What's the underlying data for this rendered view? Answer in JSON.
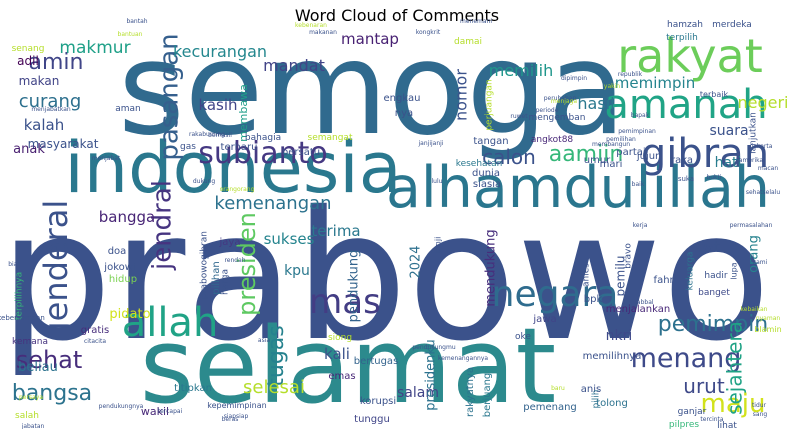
{
  "chart_data": {
    "type": "wordcloud",
    "title": "Word Cloud of Comments",
    "words": [
      {
        "text": "prabowo",
        "weight": 1.0,
        "color": "#3b528b"
      },
      {
        "text": "semoga",
        "weight": 0.93,
        "color": "#306a8e"
      },
      {
        "text": "selamat",
        "weight": 0.8,
        "color": "#2c8a8d"
      },
      {
        "text": "indonesia",
        "weight": 0.58,
        "color": "#2a788e"
      },
      {
        "text": "alhamdulillah",
        "weight": 0.47,
        "color": "#2a768e"
      },
      {
        "text": "rakyat",
        "weight": 0.4,
        "color": "#6ccd5a"
      },
      {
        "text": "amanah",
        "weight": 0.35,
        "color": "#20a486"
      },
      {
        "text": "gibran",
        "weight": 0.34,
        "color": "#3b528b"
      },
      {
        "text": "allah",
        "weight": 0.34,
        "color": "#20a386"
      },
      {
        "text": "negara",
        "weight": 0.31,
        "color": "#2f6c8e"
      },
      {
        "text": "mas",
        "weight": 0.28,
        "color": "#433d84"
      },
      {
        "text": "jenderal",
        "weight": 0.26,
        "color": "#3b528b"
      },
      {
        "text": "subianto",
        "weight": 0.24,
        "color": "#453882"
      },
      {
        "text": "menang",
        "weight": 0.23,
        "color": "#3e4a89"
      },
      {
        "text": "pasangan",
        "weight": 0.22,
        "color": "#355f8d"
      },
      {
        "text": "jendral",
        "weight": 0.22,
        "color": "#463480"
      },
      {
        "text": "maju",
        "weight": 0.22,
        "color": "#d2e21b"
      },
      {
        "text": "presiden",
        "weight": 0.2,
        "color": "#5ec962"
      },
      {
        "text": "sehat",
        "weight": 0.2,
        "color": "#472d7b"
      },
      {
        "text": "pemimpin",
        "weight": 0.19,
        "color": "#2d718e"
      },
      {
        "text": "tugas",
        "weight": 0.19,
        "color": "#26828e"
      },
      {
        "text": "aamiin",
        "weight": 0.18,
        "color": "#35b779"
      },
      {
        "text": "bangsa",
        "weight": 0.18,
        "color": "#2c738e"
      },
      {
        "text": "amin",
        "weight": 0.17,
        "color": "#404588"
      },
      {
        "text": "calon",
        "weight": 0.16,
        "color": "#3b528b"
      },
      {
        "text": "urut",
        "weight": 0.16,
        "color": "#3e4989"
      },
      {
        "text": "sejahtera",
        "weight": 0.15,
        "color": "#20a386"
      },
      {
        "text": "kemenangan",
        "weight": 0.14,
        "color": "#2c728e"
      },
      {
        "text": "curang",
        "weight": 0.14,
        "color": "#2d708e"
      },
      {
        "text": "selesai",
        "weight": 0.14,
        "color": "#b5de2b"
      },
      {
        "text": "makmur",
        "weight": 0.13,
        "color": "#1fa088"
      },
      {
        "text": "kecurangan",
        "weight": 0.13,
        "color": "#24878e"
      },
      {
        "text": "memilih",
        "weight": 0.13,
        "color": "#1f968b"
      },
      {
        "text": "mandat",
        "weight": 0.13,
        "color": "#414487"
      },
      {
        "text": "mantap",
        "weight": 0.12,
        "color": "#482173"
      },
      {
        "text": "nomor",
        "weight": 0.12,
        "color": "#3b528b"
      },
      {
        "text": "hasil",
        "weight": 0.12,
        "color": "#2a788e"
      },
      {
        "text": "memimpin",
        "weight": 0.11,
        "color": "#25848e"
      },
      {
        "text": "negeri",
        "weight": 0.11,
        "color": "#b5de2b"
      },
      {
        "text": "kasih",
        "weight": 0.11,
        "color": "#404588"
      },
      {
        "text": "kalah",
        "weight": 0.11,
        "color": "#3b528b"
      },
      {
        "text": "bangga",
        "weight": 0.11,
        "color": "#482576"
      },
      {
        "text": "sukses",
        "weight": 0.11,
        "color": "#25848e"
      },
      {
        "text": "suara",
        "weight": 0.11,
        "color": "#3b528b"
      },
      {
        "text": "hati",
        "weight": 0.11,
        "color": "#287d8e"
      },
      {
        "text": "terima",
        "weight": 0.11,
        "color": "#2a788e"
      },
      {
        "text": "pendukung",
        "weight": 0.1,
        "color": "#33638d"
      },
      {
        "text": "mendukung",
        "weight": 0.1,
        "color": "#472e7c"
      },
      {
        "text": "2024",
        "weight": 0.1,
        "color": "#2d708e"
      },
      {
        "text": "swt",
        "weight": 0.1,
        "color": "#3b528b"
      },
      {
        "text": "kali",
        "weight": 0.1,
        "color": "#3b528b"
      },
      {
        "text": "salam",
        "weight": 0.1,
        "color": "#414487"
      },
      {
        "text": "kpu",
        "weight": 0.09,
        "color": "#2a788e"
      },
      {
        "text": "anak",
        "weight": 0.09,
        "color": "#481f70"
      },
      {
        "text": "adil",
        "weight": 0.09,
        "color": "#440154"
      },
      {
        "text": "makan",
        "weight": 0.09,
        "color": "#414487"
      },
      {
        "text": "masyarakat",
        "weight": 0.09,
        "color": "#3b528b"
      },
      {
        "text": "membawa",
        "weight": 0.08,
        "color": "#1f9e89"
      },
      {
        "text": "orang",
        "weight": 0.08,
        "color": "#26828e"
      },
      {
        "text": "pemilu",
        "weight": 0.08,
        "color": "#3b528b"
      },
      {
        "text": "presidenku",
        "weight": 0.08,
        "color": "#2c728e"
      },
      {
        "text": "nkri",
        "weight": 0.08,
        "color": "#3e4989"
      },
      {
        "text": "beliau",
        "weight": 0.08,
        "color": "#2c728e"
      },
      {
        "text": "pidato",
        "weight": 0.08,
        "color": "#d2e21b"
      },
      {
        "text": "angkot88",
        "weight": 0.06,
        "color": "#482878"
      },
      {
        "text": "bertugas",
        "weight": 0.06,
        "color": "#33638d"
      },
      {
        "text": "emas",
        "weight": 0.06,
        "color": "#482878"
      },
      {
        "text": "korupsi",
        "weight": 0.06,
        "color": "#3b528b"
      },
      {
        "text": "tunggu",
        "weight": 0.06,
        "color": "#404588"
      },
      {
        "text": "wakil",
        "weight": 0.06,
        "color": "#482878"
      },
      {
        "text": "titipkan",
        "weight": 0.06,
        "color": "#2a788e"
      },
      {
        "text": "pilihan",
        "weight": 0.06,
        "color": "#31688e"
      },
      {
        "text": "jaya",
        "weight": 0.06,
        "color": "#453882"
      },
      {
        "text": "doa",
        "weight": 0.06,
        "color": "#3b528b"
      },
      {
        "text": "jokowi",
        "weight": 0.06,
        "color": "#3b528b"
      },
      {
        "text": "hidup",
        "weight": 0.06,
        "color": "#7ad151"
      },
      {
        "text": "gratis",
        "weight": 0.06,
        "color": "#472d7b"
      },
      {
        "text": "kemana",
        "weight": 0.06,
        "color": "#46337f"
      },
      {
        "text": "menjalankan",
        "weight": 0.06,
        "color": "#482878"
      },
      {
        "text": "jawa",
        "weight": 0.06,
        "color": "#404588"
      },
      {
        "text": "pemenang",
        "weight": 0.06,
        "color": "#33638d"
      },
      {
        "text": "anis",
        "weight": 0.06,
        "color": "#3b528b"
      },
      {
        "text": "pilih",
        "weight": 0.06,
        "color": "#2c728e"
      },
      {
        "text": "tolong",
        "weight": 0.06,
        "color": "#2c728e"
      },
      {
        "text": "berjuang",
        "weight": 0.06,
        "color": "#2a788e"
      },
      {
        "text": "rakyatnya",
        "weight": 0.06,
        "color": "#2c728e"
      },
      {
        "text": "banget",
        "weight": 0.05,
        "color": "#3e4a89"
      },
      {
        "text": "hadir",
        "weight": 0.05,
        "color": "#3b528b"
      },
      {
        "text": "keluarga",
        "weight": 0.05,
        "color": "#2c728e"
      },
      {
        "text": "fahri",
        "weight": 0.05,
        "color": "#3b528b"
      },
      {
        "text": "bpk",
        "weight": 0.05,
        "color": "#3b528b"
      },
      {
        "text": "ganjar",
        "weight": 0.05,
        "color": "#3b528b"
      },
      {
        "text": "pilpres",
        "weight": 0.05,
        "color": "#35b779"
      },
      {
        "text": "lihat",
        "weight": 0.05,
        "color": "#3b528b"
      },
      {
        "text": "jujur",
        "weight": 0.05,
        "color": "#3b528b"
      },
      {
        "text": "raka",
        "weight": 0.05,
        "color": "#3b528b"
      },
      {
        "text": "partai",
        "weight": 0.05,
        "color": "#3b528b"
      },
      {
        "text": "mari",
        "weight": 0.05,
        "color": "#3b528b"
      },
      {
        "text": "umur",
        "weight": 0.05,
        "color": "#3b528b"
      },
      {
        "text": "tangan",
        "weight": 0.05,
        "color": "#3b528b"
      },
      {
        "text": "dunia",
        "weight": 0.05,
        "color": "#3b528b"
      },
      {
        "text": "siasia",
        "weight": 0.05,
        "color": "#3b528b"
      },
      {
        "text": "kesehatan",
        "weight": 0.05,
        "color": "#2a788e"
      },
      {
        "text": "bersatu",
        "weight": 0.05,
        "color": "#3b528b"
      },
      {
        "text": "terharu",
        "weight": 0.05,
        "color": "#3b528b"
      },
      {
        "text": "bahagia",
        "weight": 0.05,
        "color": "#3b528b"
      },
      {
        "text": "gas",
        "weight": 0.05,
        "color": "#3b528b"
      },
      {
        "text": "mengemban",
        "weight": 0.05,
        "color": "#3b528b"
      },
      {
        "text": "engkau",
        "weight": 0.05,
        "color": "#3b528b"
      },
      {
        "text": "nya",
        "weight": 0.05,
        "color": "#3b528b"
      },
      {
        "text": "aman",
        "weight": 0.05,
        "color": "#3b528b"
      },
      {
        "text": "terpilih",
        "weight": 0.05,
        "color": "#2a788e"
      },
      {
        "text": "prabowogibran",
        "weight": 0.05,
        "color": "#3b528b"
      },
      {
        "text": "harga",
        "weight": 0.04,
        "color": "#3b528b"
      },
      {
        "text": "terpilihnya",
        "weight": 0.04,
        "color": "#35b779"
      },
      {
        "text": "kebersamaan",
        "weight": 0.04,
        "color": "#3b528b"
      },
      {
        "text": "anies",
        "weight": 0.04,
        "color": "#3b528b"
      },
      {
        "text": "bravo",
        "weight": 0.04,
        "color": "#3b528b"
      },
      {
        "text": "kepemimpinan",
        "weight": 0.04,
        "color": "#3b528b"
      },
      {
        "text": "semangat",
        "weight": 0.04,
        "color": "#b5de2b"
      },
      {
        "text": "damai",
        "weight": 0.04,
        "color": "#b5de2b"
      },
      {
        "text": "perjuangan",
        "weight": 0.04,
        "color": "#b5de2b"
      },
      {
        "text": "senang",
        "weight": 0.03,
        "color": "#b5de2b"
      },
      {
        "text": "salah",
        "weight": 0.04,
        "color": "#b5de2b"
      },
      {
        "text": "hamzah",
        "weight": 0.04,
        "color": "#3b528b"
      },
      {
        "text": "merdeka",
        "weight": 0.04,
        "color": "#3b528b"
      },
      {
        "text": "terbaik",
        "weight": 0.03,
        "color": "#3b528b"
      },
      {
        "text": "lanjutkan",
        "weight": 0.03,
        "color": "#3b528b"
      },
      {
        "text": "janji",
        "weight": 0.03,
        "color": "#3b528b"
      },
      {
        "text": "menemani",
        "weight": 0.03,
        "color": "#3b528b"
      },
      {
        "text": "dipimpin",
        "weight": 0.02,
        "color": "#3b528b"
      },
      {
        "text": "pemilihan",
        "weight": 0.02,
        "color": "#3b528b"
      },
      {
        "text": "memilihnya",
        "weight": 0.04,
        "color": "#3b528b"
      },
      {
        "text": "oke",
        "weight": 0.03,
        "color": "#3b528b"
      },
      {
        "text": "siong",
        "weight": 0.03,
        "color": "#b5de2b"
      },
      {
        "text": "suka",
        "weight": 0.02,
        "color": "#3b528b"
      },
      {
        "text": "lupa",
        "weight": 0.03,
        "color": "#3b528b"
      },
      {
        "text": "blamin",
        "weight": 0.02,
        "color": "#b5de2b"
      },
      {
        "text": "rabbal",
        "weight": 0.02,
        "color": "#3b528b"
      },
      {
        "text": "tercinta",
        "weight": 0.02,
        "color": "#3b528b"
      },
      {
        "text": "kebaikan",
        "weight": 0.02,
        "color": "#b5de2b"
      },
      {
        "text": "tidur",
        "weight": 0.02,
        "color": "#3b528b"
      },
      {
        "text": "sang",
        "weight": 0.02,
        "color": "#3b528b"
      },
      {
        "text": "nyaman",
        "weight": 0.02,
        "color": "#b5de2b"
      },
      {
        "text": "baik",
        "weight": 0.02,
        "color": "#3b528b"
      },
      {
        "text": "kami",
        "weight": 0.02,
        "color": "#3b528b"
      },
      {
        "text": "pendukungnya",
        "weight": 0.02,
        "color": "#3b528b"
      },
      {
        "text": "dukung",
        "weight": 0.02,
        "color": "#3b528b"
      },
      {
        "text": "perubahan",
        "weight": 0.02,
        "color": "#3b528b"
      },
      {
        "text": "republik",
        "weight": 0.02,
        "color": "#3b528b"
      },
      {
        "text": "rendah",
        "weight": 0.02,
        "color": "#3b528b"
      },
      {
        "text": "yakin",
        "weight": 0.02,
        "color": "#b5de2b"
      },
      {
        "text": "asia",
        "weight": 0.02,
        "color": "#3b528b"
      },
      {
        "text": "periode",
        "weight": 0.02,
        "color": "#3b528b"
      },
      {
        "text": "menjabat",
        "weight": 0.02,
        "color": "#3b528b"
      },
      {
        "text": "orangorang",
        "weight": 0.02,
        "color": "#b5de2b"
      },
      {
        "text": "kemenangannya",
        "weight": 0.02,
        "color": "#3b528b"
      },
      {
        "text": "siapsiap",
        "weight": 0.02,
        "color": "#3b528b"
      },
      {
        "text": "jabatan",
        "weight": 0.02,
        "color": "#3b528b"
      },
      {
        "text": "berhasil",
        "weight": 0.02,
        "color": "#3b528b"
      },
      {
        "text": "bukti",
        "weight": 0.02,
        "color": "#3b528b"
      },
      {
        "text": "lulu",
        "weight": 0.02,
        "color": "#3b528b"
      },
      {
        "text": "baru",
        "weight": 0.02,
        "color": "#b5de2b"
      },
      {
        "text": "beras",
        "weight": 0.02,
        "color": "#3b528b"
      },
      {
        "text": "tercapai",
        "weight": 0.02,
        "color": "#3b528b"
      },
      {
        "text": "persaya",
        "weight": 0.02,
        "color": "#b5de2b"
      },
      {
        "text": "citacita",
        "weight": 0.02,
        "color": "#3b528b"
      },
      {
        "text": "kerja",
        "weight": 0.02,
        "color": "#3b528b"
      },
      {
        "text": "bantuan",
        "weight": 0.02,
        "color": "#b5de2b"
      },
      {
        "text": "biar",
        "weight": 0.02,
        "color": "#3b528b"
      },
      {
        "text": "jakarta",
        "weight": 0.02,
        "color": "#3b528b"
      },
      {
        "text": "kebenaran",
        "weight": 0.02,
        "color": "#b5de2b"
      },
      {
        "text": "makanan",
        "weight": 0.02,
        "color": "#3b528b"
      },
      {
        "text": "bantah",
        "weight": 0.02,
        "color": "#3b528b"
      },
      {
        "text": "kongkrit",
        "weight": 0.02,
        "color": "#3b528b"
      },
      {
        "text": "ruwet",
        "weight": 0.02,
        "color": "#3b528b"
      },
      {
        "text": "rakabuming",
        "weight": 0.02,
        "color": "#3b528b"
      },
      {
        "text": "janjijanji",
        "weight": 0.02,
        "color": "#3b528b"
      },
      {
        "text": "membangun",
        "weight": 0.02,
        "color": "#3b528b"
      },
      {
        "text": "macan",
        "weight": 0.02,
        "color": "#3b528b"
      },
      {
        "text": "amerika",
        "weight": 0.02,
        "color": "#3b528b"
      },
      {
        "text": "pemimpinan",
        "weight": 0.02,
        "color": "#3b528b"
      },
      {
        "text": "sehatselalu",
        "weight": 0.02,
        "color": "#3b528b"
      },
      {
        "text": "permasalahan",
        "weight": 0.02,
        "color": "#3b528b"
      },
      {
        "text": "bapak",
        "weight": 0.02,
        "color": "#3b528b"
      },
      {
        "text": "menjaga",
        "weight": 0.02,
        "color": "#b5de2b"
      },
      {
        "text": "pendukungmu",
        "weight": 0.02,
        "color": "#3b528b"
      },
      {
        "text": "menjabatkan",
        "weight": 0.02,
        "color": "#3b528b"
      }
    ]
  }
}
